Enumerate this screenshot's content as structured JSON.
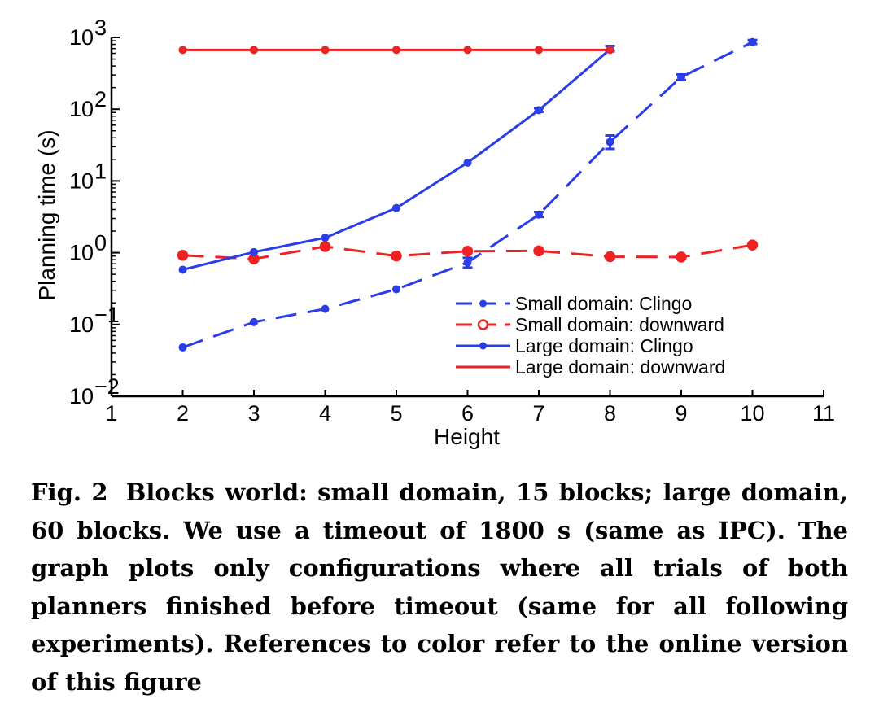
{
  "figure": {
    "number_label": "Fig. 2",
    "caption": "Blocks world: small domain, 15 blocks; large domain, 60 blocks. We use a timeout of 1800 s (same as IPC). The graph plots only configurations where all trials of both planners finished before timeout (same for all following experiments). References to color refer to the online version of this figure"
  },
  "chart_data": {
    "type": "line",
    "title": "",
    "xlabel": "Height",
    "ylabel": "Planning time (s)",
    "xlim": [
      1,
      11
    ],
    "ylim": [
      0.01,
      1000
    ],
    "yscale": "log",
    "x_ticks": [
      1,
      2,
      3,
      4,
      5,
      6,
      7,
      8,
      9,
      10,
      11
    ],
    "y_ticks": [
      {
        "value": 0.01,
        "base": "10",
        "exp": "−2"
      },
      {
        "value": 0.1,
        "base": "10",
        "exp": "−1"
      },
      {
        "value": 1,
        "base": "10",
        "exp": "0"
      },
      {
        "value": 10,
        "base": "10",
        "exp": "1"
      },
      {
        "value": 100,
        "base": "10",
        "exp": "2"
      },
      {
        "value": 1000,
        "base": "10",
        "exp": "3"
      }
    ],
    "legend_position": "lower-right",
    "series": [
      {
        "name": "Small domain: Clingo",
        "color": "#2a3de8",
        "line_style": "dashed",
        "marker": "dot",
        "x": [
          2,
          3,
          4,
          5,
          6,
          7,
          8,
          9,
          10
        ],
        "y": [
          0.048,
          0.108,
          0.165,
          0.31,
          0.73,
          3.4,
          35,
          280,
          860
        ],
        "err_low": [
          null,
          null,
          null,
          null,
          0.62,
          3.15,
          28,
          255,
          810
        ],
        "err_high": [
          null,
          null,
          null,
          null,
          0.85,
          3.7,
          43,
          305,
          920
        ]
      },
      {
        "name": "Small domain: downward",
        "color": "#ee2222",
        "line_style": "dashed",
        "marker": "circle",
        "x": [
          2,
          3,
          4,
          5,
          6,
          7,
          8,
          9,
          10
        ],
        "y": [
          0.92,
          0.82,
          1.22,
          0.9,
          1.05,
          1.06,
          0.88,
          0.87,
          1.28
        ],
        "err_low": [
          null,
          null,
          null,
          null,
          null,
          null,
          null,
          null,
          null
        ],
        "err_high": [
          null,
          null,
          null,
          null,
          null,
          null,
          null,
          null,
          null
        ]
      },
      {
        "name": "Large domain: Clingo",
        "color": "#2a3de8",
        "line_style": "solid",
        "marker": "dot",
        "x": [
          2,
          3,
          4,
          5,
          6,
          7,
          8
        ],
        "y": [
          0.58,
          1.02,
          1.62,
          4.2,
          18,
          97,
          680
        ],
        "err_low": [
          null,
          null,
          null,
          null,
          null,
          92,
          640
        ],
        "err_high": [
          null,
          null,
          null,
          null,
          null,
          103,
          760
        ]
      },
      {
        "name": "Large domain: downward",
        "color": "#ee2222",
        "line_style": "solid",
        "marker": "dot",
        "x": [
          2,
          3,
          4,
          5,
          6,
          7,
          8
        ],
        "y": [
          670,
          670,
          670,
          670,
          670,
          670,
          670
        ],
        "err_low": [
          null,
          null,
          null,
          null,
          null,
          null,
          null
        ],
        "err_high": [
          null,
          null,
          null,
          null,
          null,
          null,
          null
        ]
      }
    ]
  }
}
